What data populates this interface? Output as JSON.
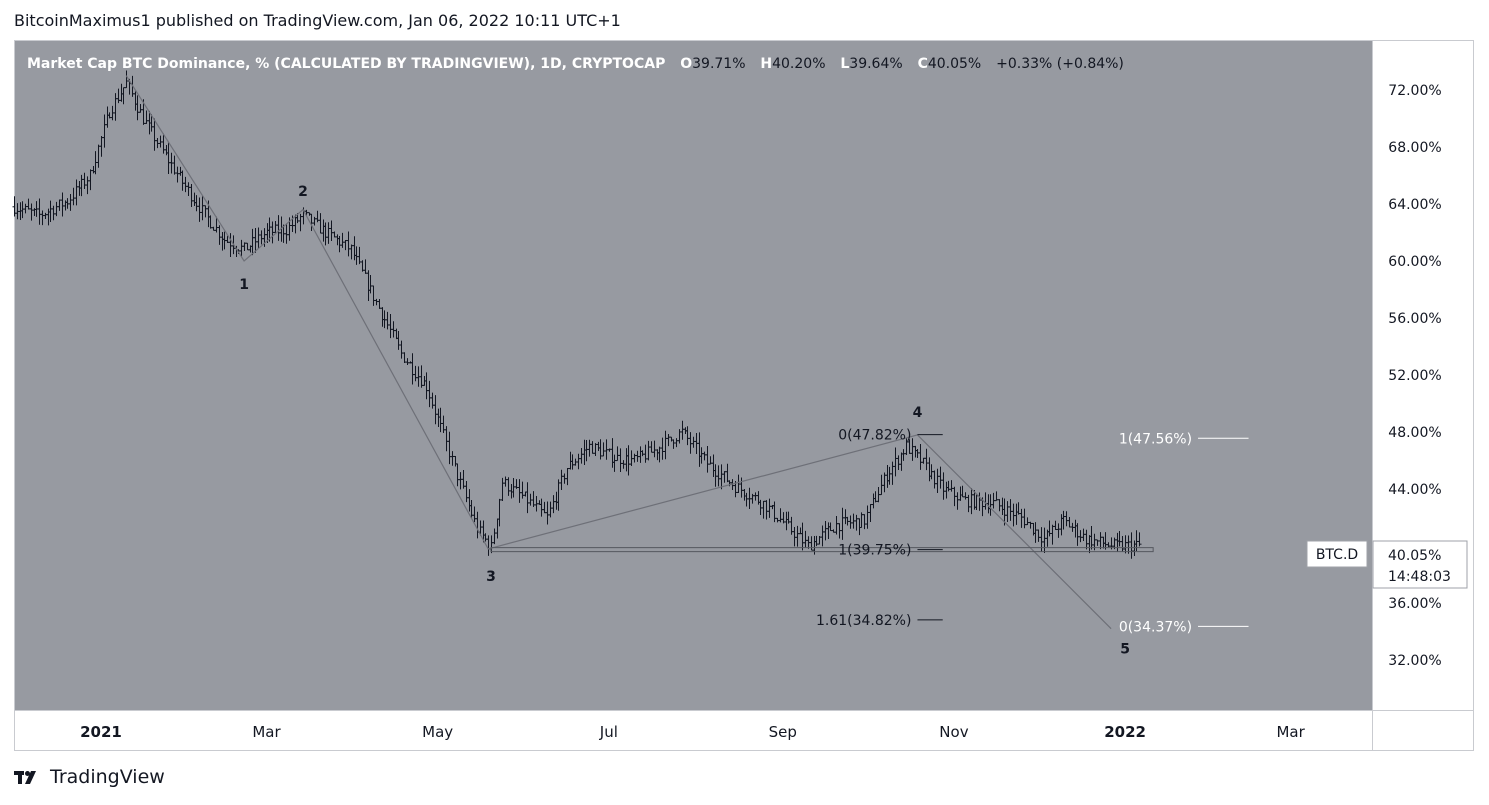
{
  "header": {
    "publisher_line": "BitcoinMaximus1 published on TradingView.com, Jan 06, 2022 10:11 UTC+1"
  },
  "footer": {
    "brand": "TradingView"
  },
  "colors": {
    "chart_bg": "#979aa1",
    "axis_bg": "#ffffff",
    "candle": "#131722",
    "line": "#6e7078",
    "text": "#131722",
    "legend_text": "#ffffff"
  },
  "legend": {
    "symbol_text": "Market Cap BTC Dominance, % (CALCULATED BY TRADINGVIEW), 1D, CRYPTOCAP",
    "o_label": "O",
    "o_value": "39.71%",
    "h_label": "H",
    "h_value": "40.20%",
    "l_label": "L",
    "l_value": "39.64%",
    "c_label": "C",
    "c_value": "40.05%",
    "change": "+0.33% (+0.84%)"
  },
  "price_tag": {
    "symbol": "BTC.D",
    "value": "40.05%",
    "countdown": "14:48:03"
  },
  "chart_data": {
    "type": "ohlc",
    "title": "Market Cap BTC Dominance, % (CALCULATED BY TRADINGVIEW), 1D, CRYPTOCAP",
    "y_axis": {
      "ticks": [
        "72.00%",
        "68.00%",
        "64.00%",
        "60.00%",
        "56.00%",
        "52.00%",
        "48.00%",
        "44.00%",
        "40.00%",
        "36.00%",
        "32.00%"
      ],
      "tick_values": [
        72,
        68,
        64,
        60,
        56,
        52,
        48,
        44,
        40,
        36,
        32
      ],
      "range": [
        28.5,
        75.5
      ]
    },
    "x_axis": {
      "ticks": [
        "2021",
        "Mar",
        "May",
        "Jul",
        "Sep",
        "Nov",
        "2022",
        "Mar"
      ],
      "tick_dates": [
        "2021-01-01",
        "2021-03-01",
        "2021-05-01",
        "2021-07-01",
        "2021-09-01",
        "2021-11-01",
        "2022-01-01",
        "2022-03-01"
      ],
      "range": [
        "2020-12-01",
        "2022-03-30"
      ]
    },
    "price_keypoints": [
      [
        "2020-12-01",
        63.8
      ],
      [
        "2020-12-10",
        63.2
      ],
      [
        "2020-12-20",
        64.2
      ],
      [
        "2020-12-28",
        66.0
      ],
      [
        "2021-01-04",
        70.5
      ],
      [
        "2021-01-10",
        72.5
      ],
      [
        "2021-01-16",
        70.0
      ],
      [
        "2021-01-22",
        68.0
      ],
      [
        "2021-01-30",
        65.5
      ],
      [
        "2021-02-06",
        63.5
      ],
      [
        "2021-02-14",
        61.5
      ],
      [
        "2021-02-21",
        60.8
      ],
      [
        "2021-03-01",
        62.0
      ],
      [
        "2021-03-08",
        62.2
      ],
      [
        "2021-03-14",
        63.2
      ],
      [
        "2021-03-22",
        62.0
      ],
      [
        "2021-03-31",
        60.8
      ],
      [
        "2021-04-08",
        57.5
      ],
      [
        "2021-04-18",
        53.5
      ],
      [
        "2021-04-27",
        51.2
      ],
      [
        "2021-05-06",
        46.0
      ],
      [
        "2021-05-15",
        41.2
      ],
      [
        "2021-05-20",
        39.9
      ],
      [
        "2021-05-24",
        44.5
      ],
      [
        "2021-06-02",
        43.2
      ],
      [
        "2021-06-09",
        42.0
      ],
      [
        "2021-06-16",
        45.5
      ],
      [
        "2021-06-24",
        47.0
      ],
      [
        "2021-07-03",
        46.2
      ],
      [
        "2021-07-10",
        46.0
      ],
      [
        "2021-07-18",
        46.8
      ],
      [
        "2021-07-27",
        48.0
      ],
      [
        "2021-08-05",
        45.8
      ],
      [
        "2021-08-15",
        44.2
      ],
      [
        "2021-08-25",
        43.0
      ],
      [
        "2021-09-03",
        41.3
      ],
      [
        "2021-09-10",
        40.0
      ],
      [
        "2021-09-20",
        41.5
      ],
      [
        "2021-09-30",
        41.8
      ],
      [
        "2021-10-08",
        45.0
      ],
      [
        "2021-10-15",
        47.0
      ],
      [
        "2021-10-20",
        46.0
      ],
      [
        "2021-10-28",
        44.0
      ],
      [
        "2021-11-05",
        43.2
      ],
      [
        "2021-11-15",
        43.0
      ],
      [
        "2021-11-25",
        42.0
      ],
      [
        "2021-12-03",
        40.5
      ],
      [
        "2021-12-10",
        41.8
      ],
      [
        "2021-12-18",
        40.5
      ],
      [
        "2021-12-28",
        40.0
      ],
      [
        "2022-01-06",
        40.05
      ]
    ],
    "wave_labels": [
      {
        "label": "1",
        "date": "2021-02-21",
        "value": 58.4
      },
      {
        "label": "2",
        "date": "2021-03-14",
        "value": 64.9
      },
      {
        "label": "3",
        "date": "2021-05-20",
        "value": 37.9
      },
      {
        "label": "4",
        "date": "2021-10-19",
        "value": 49.4
      },
      {
        "label": "5",
        "date": "2022-01-01",
        "value": 32.8
      }
    ],
    "wave_path": [
      [
        "2021-01-10",
        73.0
      ],
      [
        "2021-02-21",
        60.0
      ],
      [
        "2021-03-14",
        63.6
      ],
      [
        "2021-05-19",
        39.8
      ],
      [
        "2021-10-19",
        47.8
      ],
      [
        "2021-12-27",
        34.2
      ]
    ],
    "support_line": {
      "start": "2021-05-20",
      "end": "2022-01-11",
      "value": 39.75
    },
    "fib_levels_left": [
      {
        "label": "0(47.82%)",
        "value": 47.82,
        "start": "2021-10-19",
        "end": "2021-10-28"
      },
      {
        "label": "1(39.75%)",
        "value": 39.75,
        "start": "2021-10-19",
        "end": "2021-10-28"
      },
      {
        "label": "1.61(34.82%)",
        "value": 34.82,
        "start": "2021-10-19",
        "end": "2021-10-28"
      }
    ],
    "fib_levels_right": [
      {
        "label": "1(47.56%)",
        "value": 47.56,
        "start": "2022-01-27",
        "end": "2022-02-14"
      },
      {
        "label": "0(34.37%)",
        "value": 34.37,
        "start": "2022-01-27",
        "end": "2022-02-14"
      }
    ]
  }
}
